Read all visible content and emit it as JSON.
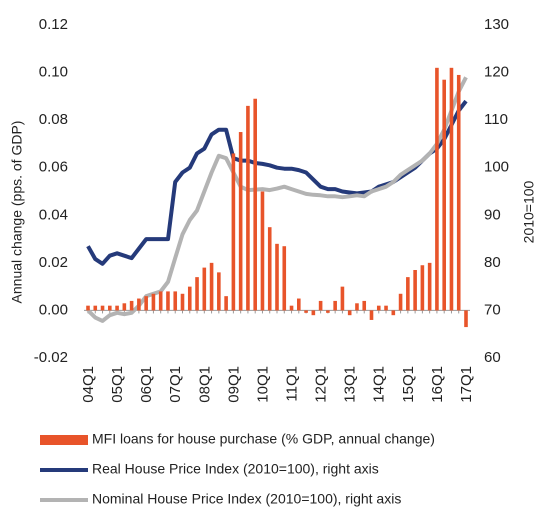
{
  "chart_data": {
    "type": "combo",
    "categories": [
      "04Q1",
      null,
      null,
      null,
      "05Q1",
      null,
      null,
      null,
      "06Q1",
      null,
      null,
      null,
      "07Q1",
      null,
      null,
      null,
      "08Q1",
      null,
      null,
      null,
      "09Q1",
      null,
      null,
      null,
      "10Q1",
      null,
      null,
      null,
      "11Q1",
      null,
      null,
      null,
      "12Q1",
      null,
      null,
      null,
      "13Q1",
      null,
      null,
      null,
      "14Q1",
      null,
      null,
      null,
      "15Q1",
      null,
      null,
      null,
      "16Q1",
      null,
      null,
      null,
      "17Q1"
    ],
    "y_label": "Annual change (pps. of GDP)",
    "y2_label": "2010=100",
    "ylim": [
      -0.02,
      0.12
    ],
    "yticks": [
      -0.02,
      {
        "value": 0,
        "label": "0.00"
      },
      0.02,
      0.04,
      0.06,
      0.08,
      {
        "value": 0.1,
        "label": "0.10"
      },
      0.12
    ],
    "y2lim": [
      60,
      130
    ],
    "y2ticks": [
      60,
      70,
      80,
      90,
      100,
      110,
      120,
      130
    ],
    "series": [
      {
        "name": "MFI loans for house purchase (% GDP, annual change)",
        "type": "bar",
        "color": "#e8542a",
        "values": [
          0.002,
          0.002,
          0.002,
          0.002,
          0.002,
          0.003,
          0.004,
          0.005,
          0.006,
          0.007,
          0.008,
          0.008,
          0.008,
          0.007,
          0.01,
          0.014,
          0.018,
          0.02,
          0.016,
          0.006,
          0.066,
          0.075,
          0.086,
          0.089,
          0.05,
          0.035,
          0.028,
          0.027,
          0.002,
          0.005,
          -0.001,
          -0.002,
          0.004,
          -0.001,
          0.004,
          0.01,
          -0.002,
          0.003,
          0.004,
          -0.004,
          0.002,
          0.002,
          -0.002,
          0.007,
          0.014,
          0.017,
          0.019,
          0.02,
          0.102,
          0.097,
          0.102,
          0.099,
          -0.007
        ]
      },
      {
        "name": "Real House Price Index (2010=100), right axis",
        "type": "line",
        "axis": "y2",
        "color": "#253a7a",
        "values": [
          83.5,
          80.8,
          79.8,
          81.5,
          82,
          81.5,
          81,
          83,
          85,
          85,
          85,
          85,
          97,
          99,
          100,
          103,
          104,
          107,
          108,
          108,
          102,
          101.5,
          101.5,
          101,
          100.8,
          100.5,
          100,
          99.8,
          99.8,
          99.5,
          99,
          97.5,
          96,
          95.5,
          95.5,
          95,
          94.8,
          94.6,
          94.8,
          95,
          96,
          96.5,
          97,
          98,
          99,
          100,
          101.5,
          103,
          104,
          106,
          109,
          112,
          114
        ]
      },
      {
        "name": "Nominal House Price Index (2010=100), right axis",
        "type": "line",
        "axis": "y2",
        "color": "#b3b3b3",
        "values": [
          70,
          68.5,
          67.8,
          69,
          69.5,
          69.2,
          69.5,
          71,
          73,
          73.5,
          74,
          76,
          81,
          86,
          89,
          91,
          95,
          99,
          102.5,
          102,
          99,
          96,
          95.3,
          95.4,
          95.5,
          95.3,
          95.6,
          96,
          95.5,
          95,
          94.5,
          94.3,
          94.2,
          94,
          94,
          93.8,
          94,
          94.2,
          94,
          95,
          95.5,
          96,
          97,
          98.5,
          99.5,
          100.5,
          101.5,
          103,
          105,
          108,
          112,
          116,
          119
        ]
      }
    ]
  }
}
